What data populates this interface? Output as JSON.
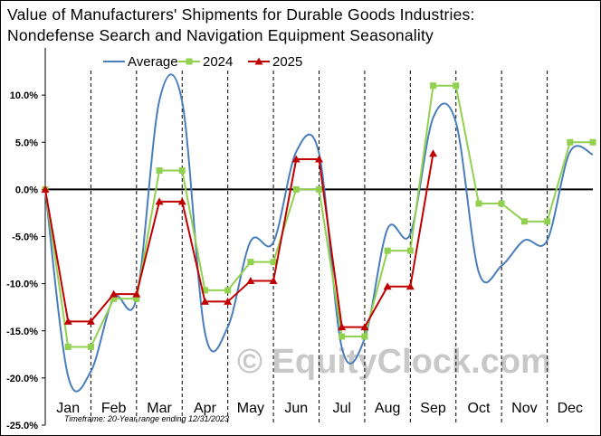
{
  "title_line1": "Value of Manufacturers' Shipments for Durable Goods Industries:",
  "title_line2": "Nondefense Search and Navigation Equipment Seasonality",
  "watermark": "© EquityClock.com",
  "footnote": "Timeframe: 20-Year range ending 12/31/2023",
  "colors": {
    "average": "#4a7ebb",
    "y2024": "#92d050",
    "y2025": "#c00000"
  },
  "chart_data": {
    "type": "line",
    "categories": [
      "Jan",
      "Feb",
      "Mar",
      "Apr",
      "May",
      "Jun",
      "Jul",
      "Aug",
      "Sep",
      "Oct",
      "Nov",
      "Dec"
    ],
    "ylim": [
      -25,
      15
    ],
    "yticks": [
      -25,
      -20,
      -15,
      -10,
      -5,
      0,
      5,
      10
    ],
    "ytick_labels": [
      "-25.0%",
      "-20.0%",
      "-15.0%",
      "-10.0%",
      "-5.0%",
      "0.0%",
      "5.0%",
      "10.0%"
    ],
    "grid": "vertical dashed month separators",
    "legend": "top-center",
    "series": [
      {
        "name": "Average",
        "style": "smooth",
        "points": [
          [
            0,
            0
          ],
          [
            0.5,
            -19.8
          ],
          [
            1,
            -19.3
          ],
          [
            1.5,
            -11.5
          ],
          [
            2,
            -11.5
          ],
          [
            2.5,
            9.4
          ],
          [
            3,
            9.3
          ],
          [
            3.5,
            -15.2
          ],
          [
            4,
            -14.6
          ],
          [
            4.5,
            -5.5
          ],
          [
            5,
            -5.6
          ],
          [
            5.5,
            4.0
          ],
          [
            6,
            3.8
          ],
          [
            6.5,
            -16.8
          ],
          [
            7,
            -15.8
          ],
          [
            7.5,
            -4.2
          ],
          [
            8,
            -4.7
          ],
          [
            8.5,
            7.6
          ],
          [
            9,
            7.1
          ],
          [
            9.5,
            -8.8
          ],
          [
            10,
            -8.1
          ],
          [
            10.5,
            -5.4
          ],
          [
            11,
            -5.4
          ],
          [
            11.5,
            4.0
          ],
          [
            12,
            3.7
          ]
        ]
      },
      {
        "name": "2024",
        "style": "linear",
        "points": [
          [
            0,
            0
          ],
          [
            0.5,
            -16.7
          ],
          [
            1,
            -16.7
          ],
          [
            1.5,
            -11.6
          ],
          [
            2,
            -11.6
          ],
          [
            2.5,
            2.0
          ],
          [
            3,
            2.0
          ],
          [
            3.5,
            -10.7
          ],
          [
            4,
            -10.7
          ],
          [
            4.5,
            -7.7
          ],
          [
            5,
            -7.7
          ],
          [
            5.5,
            0.0
          ],
          [
            6,
            0.0
          ],
          [
            6.5,
            -15.6
          ],
          [
            7,
            -15.6
          ],
          [
            7.5,
            -6.5
          ],
          [
            8,
            -6.5
          ],
          [
            8.5,
            11.0
          ],
          [
            9,
            11.0
          ],
          [
            9.5,
            -1.5
          ],
          [
            10,
            -1.5
          ],
          [
            10.5,
            -3.4
          ],
          [
            11,
            -3.4
          ],
          [
            11.5,
            5.0
          ],
          [
            12,
            5.0
          ]
        ]
      },
      {
        "name": "2025",
        "style": "linear",
        "points": [
          [
            0,
            0
          ],
          [
            0.5,
            -14.0
          ],
          [
            1,
            -14.0
          ],
          [
            1.5,
            -11.1
          ],
          [
            2,
            -11.1
          ],
          [
            2.5,
            -1.3
          ],
          [
            3,
            -1.3
          ],
          [
            3.5,
            -11.9
          ],
          [
            4,
            -11.9
          ],
          [
            4.5,
            -9.7
          ],
          [
            5,
            -9.7
          ],
          [
            5.5,
            3.2
          ],
          [
            6,
            3.2
          ],
          [
            6.5,
            -14.6
          ],
          [
            7,
            -14.6
          ],
          [
            7.5,
            -10.3
          ],
          [
            8,
            -10.3
          ],
          [
            8.5,
            3.8
          ]
        ]
      }
    ]
  }
}
